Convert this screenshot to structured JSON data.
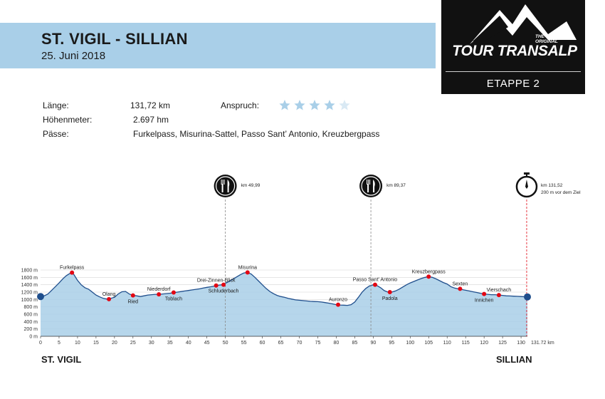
{
  "header": {
    "title": "ST. VIGIL - SILLIAN",
    "date": "25. Juni 2018"
  },
  "logo": {
    "small_the": "THE",
    "small_original": "ORIGINAL",
    "wordmark": "TOUR TRANSALP",
    "stage": "ETAPPE 2"
  },
  "info": {
    "length_label": "Länge:",
    "length_value": "131,72 km",
    "elevation_label": "Höhenmeter:",
    "elevation_value": "2.697 hm",
    "passes_label": "Pässe:",
    "passes_value": "Furkelpass, Misurina-Sattel, Passo Sant’ Antonio, Kreuzbergpass",
    "difficulty_label": "Anspruch:",
    "difficulty_stars": 4,
    "difficulty_max": 5
  },
  "markers": [
    {
      "icon": "fork-knife-icon",
      "km": 49.99,
      "label": "km 49,99"
    },
    {
      "icon": "fork-knife-icon",
      "km": 89.37,
      "label": "km 89,37"
    },
    {
      "icon": "stopwatch-icon",
      "km": 131.52,
      "label": "km 131,52",
      "label2": "200 m vor dem Ziel"
    }
  ],
  "footer": {
    "start": "ST. VIGIL",
    "finish": "SILLIAN"
  },
  "colors": {
    "banner": "#a9cfe8",
    "profile_fill": "#a9cfe8",
    "profile_line": "#1f4e8c",
    "point": "#e30613",
    "star_on": "#a9cfe8",
    "star_off": "#d9e9f4",
    "finish_line": "#e30613"
  },
  "chart_data": {
    "type": "area",
    "xlabel": "",
    "ylabel": "",
    "xlim": [
      0,
      131.72
    ],
    "ylim": [
      0,
      1800
    ],
    "x_ticks": [
      0,
      5,
      10,
      15,
      20,
      25,
      30,
      35,
      40,
      45,
      50,
      55,
      60,
      65,
      70,
      75,
      80,
      85,
      90,
      95,
      100,
      105,
      110,
      115,
      120,
      125,
      130
    ],
    "y_ticks": [
      0,
      200,
      400,
      600,
      800,
      1000,
      1200,
      1400,
      1600,
      1800
    ],
    "y_tick_suffix": " m",
    "x_end_label": "131.72 km",
    "profile": [
      [
        0,
        1080
      ],
      [
        1,
        1100
      ],
      [
        2,
        1150
      ],
      [
        3,
        1250
      ],
      [
        4,
        1350
      ],
      [
        5,
        1450
      ],
      [
        6,
        1560
      ],
      [
        7,
        1650
      ],
      [
        8,
        1710
      ],
      [
        8.5,
        1730
      ],
      [
        9,
        1680
      ],
      [
        10,
        1520
      ],
      [
        11,
        1400
      ],
      [
        12,
        1320
      ],
      [
        13,
        1280
      ],
      [
        14,
        1200
      ],
      [
        15,
        1120
      ],
      [
        16,
        1070
      ],
      [
        17,
        1030
      ],
      [
        18,
        1010
      ],
      [
        19,
        1030
      ],
      [
        20,
        1060
      ],
      [
        21,
        1150
      ],
      [
        22,
        1210
      ],
      [
        23,
        1220
      ],
      [
        24,
        1150
      ],
      [
        25,
        1110
      ],
      [
        26,
        1100
      ],
      [
        27,
        1080
      ],
      [
        28,
        1100
      ],
      [
        29,
        1120
      ],
      [
        30,
        1130
      ],
      [
        31,
        1140
      ],
      [
        32,
        1140
      ],
      [
        33,
        1150
      ],
      [
        34,
        1160
      ],
      [
        35,
        1170
      ],
      [
        36,
        1185
      ],
      [
        37,
        1200
      ],
      [
        38,
        1215
      ],
      [
        39,
        1230
      ],
      [
        40,
        1245
      ],
      [
        41,
        1260
      ],
      [
        42,
        1275
      ],
      [
        43,
        1290
      ],
      [
        44,
        1310
      ],
      [
        45,
        1330
      ],
      [
        46,
        1345
      ],
      [
        47,
        1365
      ],
      [
        48,
        1385
      ],
      [
        49,
        1400
      ],
      [
        50,
        1440
      ],
      [
        51,
        1490
      ],
      [
        52,
        1550
      ],
      [
        53,
        1610
      ],
      [
        54,
        1670
      ],
      [
        55,
        1720
      ],
      [
        56,
        1735
      ],
      [
        57,
        1690
      ],
      [
        58,
        1600
      ],
      [
        59,
        1500
      ],
      [
        60,
        1400
      ],
      [
        61,
        1300
      ],
      [
        62,
        1220
      ],
      [
        63,
        1160
      ],
      [
        64,
        1110
      ],
      [
        65,
        1080
      ],
      [
        66,
        1060
      ],
      [
        67,
        1030
      ],
      [
        68,
        1010
      ],
      [
        69,
        990
      ],
      [
        70,
        980
      ],
      [
        71,
        970
      ],
      [
        72,
        960
      ],
      [
        73,
        950
      ],
      [
        74,
        945
      ],
      [
        75,
        940
      ],
      [
        76,
        930
      ],
      [
        77,
        915
      ],
      [
        78,
        900
      ],
      [
        79,
        880
      ],
      [
        80,
        860
      ],
      [
        81,
        850
      ],
      [
        82,
        845
      ],
      [
        83,
        840
      ],
      [
        84,
        860
      ],
      [
        85,
        930
      ],
      [
        86,
        1060
      ],
      [
        87,
        1200
      ],
      [
        88,
        1300
      ],
      [
        89,
        1370
      ],
      [
        90,
        1400
      ],
      [
        91,
        1380
      ],
      [
        92,
        1320
      ],
      [
        93,
        1240
      ],
      [
        94,
        1200
      ],
      [
        95,
        1200
      ],
      [
        96,
        1230
      ],
      [
        97,
        1280
      ],
      [
        98,
        1340
      ],
      [
        99,
        1400
      ],
      [
        100,
        1450
      ],
      [
        101,
        1490
      ],
      [
        102,
        1530
      ],
      [
        103,
        1570
      ],
      [
        104,
        1600
      ],
      [
        105,
        1620
      ],
      [
        106,
        1600
      ],
      [
        107,
        1560
      ],
      [
        108,
        1510
      ],
      [
        109,
        1460
      ],
      [
        110,
        1420
      ],
      [
        111,
        1350
      ],
      [
        112,
        1310
      ],
      [
        113,
        1290
      ],
      [
        114,
        1270
      ],
      [
        115,
        1250
      ],
      [
        116,
        1230
      ],
      [
        117,
        1210
      ],
      [
        118,
        1190
      ],
      [
        119,
        1170
      ],
      [
        120,
        1150
      ],
      [
        121,
        1140
      ],
      [
        122,
        1130
      ],
      [
        123,
        1130
      ],
      [
        124,
        1120
      ],
      [
        125,
        1110
      ],
      [
        126,
        1100
      ],
      [
        127,
        1095
      ],
      [
        128,
        1090
      ],
      [
        129,
        1085
      ],
      [
        130,
        1080
      ],
      [
        131,
        1075
      ],
      [
        131.72,
        1070
      ]
    ],
    "points": [
      {
        "name": "Furkelpass",
        "x": 8.5,
        "y": 1730,
        "label_pos": "above"
      },
      {
        "name": "Olang",
        "x": 18.5,
        "y": 1010,
        "label_pos": "above"
      },
      {
        "name": "Ried",
        "x": 25,
        "y": 1110,
        "label_pos": "below"
      },
      {
        "name": "Niederdorf",
        "x": 32,
        "y": 1140,
        "label_pos": "above"
      },
      {
        "name": "Toblach",
        "x": 36,
        "y": 1190,
        "label_pos": "below"
      },
      {
        "name": "Drei-Zinnen-Blick",
        "x": 47.5,
        "y": 1380,
        "label_pos": "above"
      },
      {
        "name": "Schluderbach",
        "x": 49.5,
        "y": 1400,
        "label_pos": "below"
      },
      {
        "name": "Misurina",
        "x": 56,
        "y": 1735,
        "label_pos": "above"
      },
      {
        "name": "Auronzo",
        "x": 80.5,
        "y": 860,
        "label_pos": "above"
      },
      {
        "name": "Passo Sant' Antonio",
        "x": 90.5,
        "y": 1400,
        "label_pos": "above"
      },
      {
        "name": "Padola",
        "x": 94.5,
        "y": 1200,
        "label_pos": "below"
      },
      {
        "name": "Kreuzbergpass",
        "x": 105,
        "y": 1620,
        "label_pos": "above"
      },
      {
        "name": "Sexten",
        "x": 113.5,
        "y": 1290,
        "label_pos": "above"
      },
      {
        "name": "Innichen",
        "x": 120,
        "y": 1150,
        "label_pos": "below"
      },
      {
        "name": "Vierschach",
        "x": 124,
        "y": 1120,
        "label_pos": "above"
      }
    ]
  }
}
